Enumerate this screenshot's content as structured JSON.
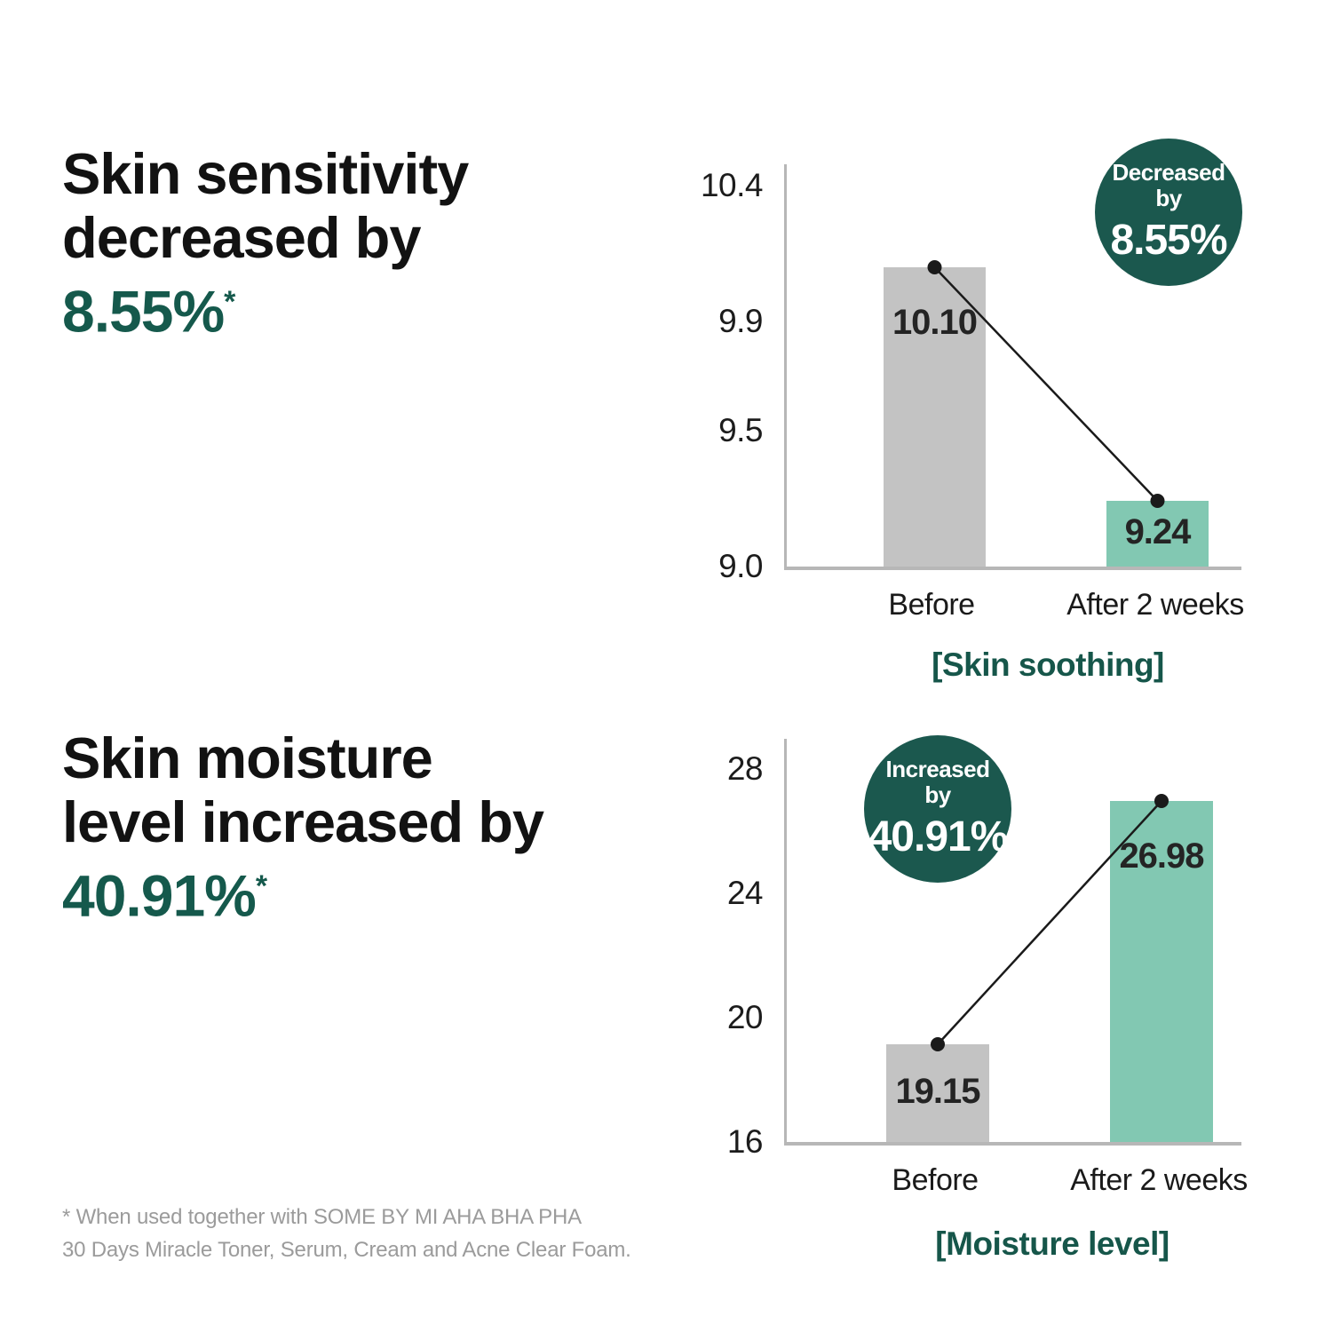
{
  "colors": {
    "accent_green_text": "#15594C",
    "badge_green": "#1B584E",
    "bar_before_gray": "#C3C3C3",
    "bar_after_teal": "#82C8B2",
    "axis_gray": "#B7B7B7",
    "footnote_gray": "#9B9B9B",
    "connector_black": "#1a1a1a"
  },
  "headline_top": {
    "line1": "Skin sensitivity",
    "line2": "decreased by",
    "value": "8.55%",
    "asterisk": "*"
  },
  "headline_bottom": {
    "line1": "Skin moisture",
    "line2": "level increased by",
    "value": "40.91%",
    "asterisk": "*"
  },
  "footnote": {
    "line1": "* When used together with SOME BY MI AHA BHA PHA",
    "line2": "30 Days Miracle Toner, Serum, Cream and Acne Clear Foam."
  },
  "chart_data": [
    {
      "type": "bar",
      "title": "[Skin soothing]",
      "categories": [
        "Before",
        "After 2 weeks"
      ],
      "values": [
        10.1,
        9.24
      ],
      "value_labels": [
        "10.10",
        "9.24"
      ],
      "yticks": [
        9.0,
        9.5,
        9.9,
        10.4
      ],
      "ytick_labels": [
        "9.0",
        "9.5",
        "9.9",
        "10.4"
      ],
      "ylim": [
        9.0,
        10.4
      ],
      "bar_colors": [
        "#C3C3C3",
        "#82C8B2"
      ],
      "grid": false,
      "legend": false,
      "badge": {
        "line1": "Decreased",
        "line2": "by",
        "value": "8.55%"
      }
    },
    {
      "type": "bar",
      "title": "[Moisture level]",
      "categories": [
        "Before",
        "After 2 weeks"
      ],
      "values": [
        19.15,
        26.98
      ],
      "value_labels": [
        "19.15",
        "26.98"
      ],
      "yticks": [
        16,
        20,
        24,
        28
      ],
      "ytick_labels": [
        "16",
        "20",
        "24",
        "28"
      ],
      "ylim": [
        16,
        28
      ],
      "bar_colors": [
        "#C3C3C3",
        "#82C8B2"
      ],
      "grid": false,
      "legend": false,
      "badge": {
        "line1": "Increased",
        "line2": "by",
        "value": "40.91%"
      }
    }
  ]
}
